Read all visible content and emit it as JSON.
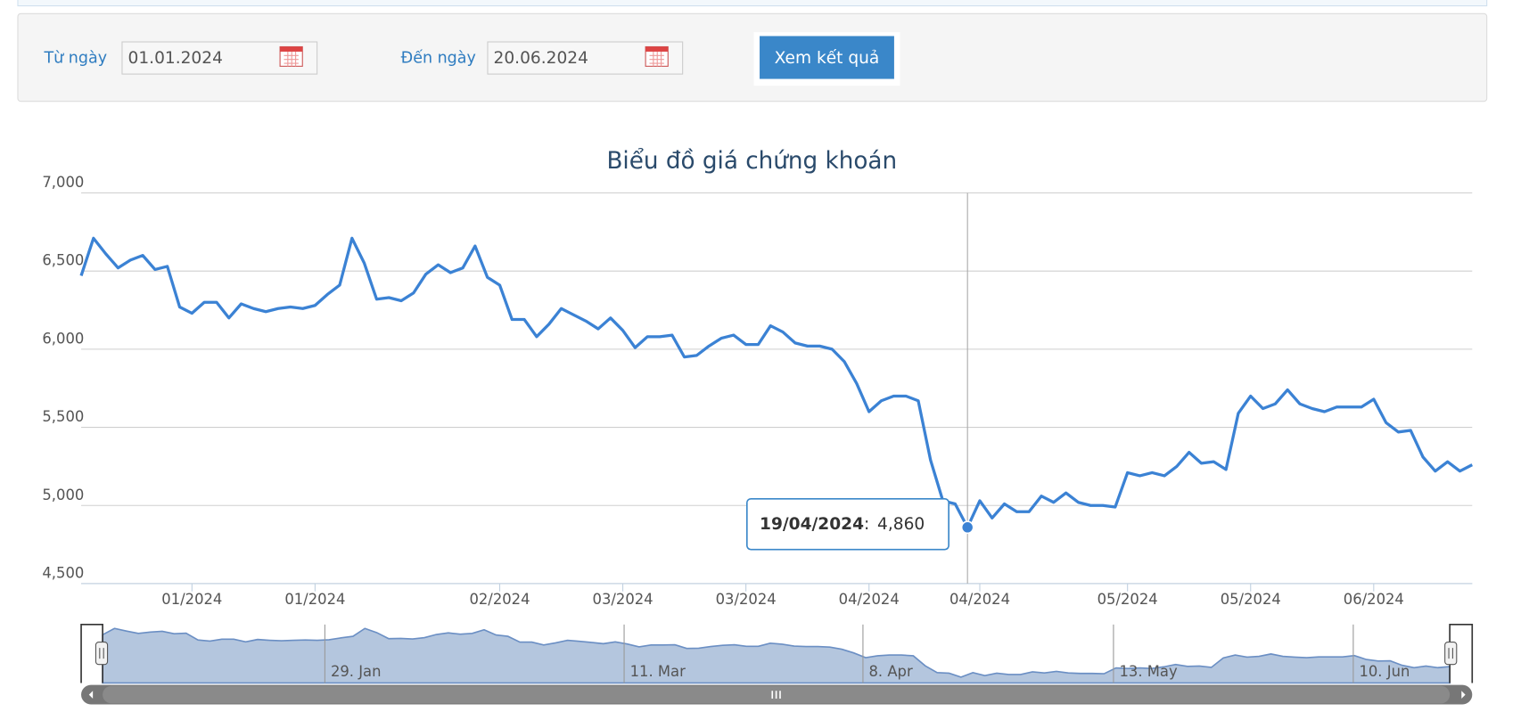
{
  "form": {
    "from_label": "Từ ngày",
    "from_value": "01.01.2024",
    "to_label": "Đến ngày",
    "to_value": "20.06.2024",
    "button": "Xem kết quả"
  },
  "chart_data": {
    "type": "line",
    "title": "Biểu đồ giá chứng khoán",
    "color": "#3b82d4",
    "grid": true,
    "categories": [
      null,
      null,
      null,
      null,
      null,
      null,
      null,
      null,
      null,
      "01/2024",
      null,
      null,
      null,
      null,
      null,
      null,
      null,
      null,
      null,
      "01/2024",
      null,
      null,
      null,
      null,
      null,
      null,
      null,
      null,
      null,
      null,
      null,
      null,
      null,
      null,
      "02/2024",
      null,
      null,
      null,
      null,
      null,
      null,
      null,
      null,
      null,
      "03/2024",
      null,
      null,
      null,
      null,
      null,
      null,
      null,
      null,
      null,
      "03/2024",
      null,
      null,
      null,
      null,
      null,
      null,
      null,
      null,
      null,
      "04/2024",
      null,
      null,
      null,
      null,
      null,
      null,
      null,
      null,
      "04/2024",
      null,
      null,
      null,
      null,
      null,
      null,
      null,
      null,
      null,
      null,
      null,
      "05/2024",
      null,
      null,
      null,
      null,
      null,
      null,
      null,
      null,
      null,
      "05/2024",
      null,
      null,
      null,
      null,
      null,
      null,
      null,
      null,
      null,
      "06/2024",
      null,
      null,
      null,
      null,
      null,
      null,
      null,
      null
    ],
    "values": [
      6470,
      6710,
      6610,
      6520,
      6570,
      6600,
      6510,
      6530,
      6270,
      6230,
      6300,
      6300,
      6200,
      6290,
      6260,
      6240,
      6260,
      6270,
      6260,
      6280,
      6350,
      6410,
      6710,
      6550,
      6320,
      6330,
      6310,
      6360,
      6480,
      6540,
      6490,
      6520,
      6660,
      6460,
      6410,
      6190,
      6190,
      6080,
      6160,
      6260,
      6220,
      6180,
      6130,
      6200,
      6120,
      6010,
      6080,
      6080,
      6090,
      5950,
      5960,
      6020,
      6070,
      6090,
      6030,
      6030,
      6150,
      6110,
      6040,
      6020,
      6020,
      6000,
      5920,
      5780,
      5600,
      5670,
      5700,
      5700,
      5670,
      5290,
      5030,
      5010,
      4860,
      5030,
      4920,
      5010,
      4960,
      4960,
      5060,
      5020,
      5080,
      5020,
      5000,
      5000,
      4990,
      5210,
      5190,
      5210,
      5190,
      5250,
      5340,
      5270,
      5280,
      5230,
      5590,
      5700,
      5620,
      5650,
      5740,
      5650,
      5620,
      5600,
      5630,
      5630,
      5630,
      5680,
      5530,
      5470,
      5480,
      5310,
      5220,
      5280,
      5220,
      5260
    ],
    "ylim": [
      4500,
      7000
    ],
    "yticks": [
      {
        "value": 4500,
        "label": "4,500"
      },
      {
        "value": 5000,
        "label": "5,000"
      },
      {
        "value": 5500,
        "label": "5,500"
      },
      {
        "value": 6000,
        "label": "6,000"
      },
      {
        "value": 6500,
        "label": "6,500"
      },
      {
        "value": 7000,
        "label": "7,000"
      }
    ],
    "tooltip": {
      "date": "19/04/2024",
      "separator": ":",
      "value": 4860,
      "value_label": "4,860"
    },
    "navigator": {
      "labels": [
        "29. Jan",
        "11. Mar",
        "8. Apr",
        "13. May",
        "10. Jun"
      ]
    }
  }
}
